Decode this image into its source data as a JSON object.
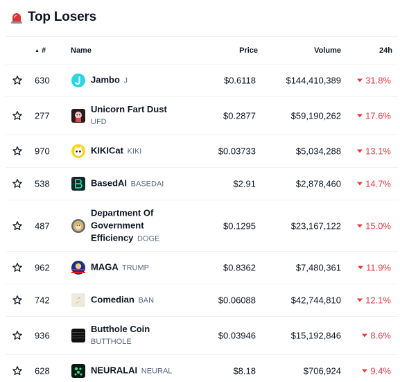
{
  "header": {
    "icon": "siren-icon",
    "title": "Top Losers"
  },
  "table": {
    "columns": {
      "rank": "#",
      "name": "Name",
      "price": "Price",
      "volume": "Volume",
      "change": "24h"
    },
    "sort_indicator": "▲",
    "rows": [
      {
        "rank": "630",
        "name": "Jambo",
        "symbol": "J",
        "price": "$0.6118",
        "volume": "$144,410,389",
        "change": "31.8%",
        "icon": "jambo-icon",
        "multiline": false
      },
      {
        "rank": "277",
        "name": "Unicorn Fart Dust",
        "symbol": "UFD",
        "price": "$0.2877",
        "volume": "$59,190,262",
        "change": "17.6%",
        "icon": "unicorn-fart-dust-icon",
        "multiline": true
      },
      {
        "rank": "970",
        "name": "KIKICat",
        "symbol": "KIKI",
        "price": "$0.03733",
        "volume": "$5,034,288",
        "change": "13.1%",
        "icon": "kikicat-icon",
        "multiline": false
      },
      {
        "rank": "538",
        "name": "BasedAI",
        "symbol": "BASEDAI",
        "price": "$2.91",
        "volume": "$2,878,460",
        "change": "14.7%",
        "icon": "basedai-icon",
        "multiline": false
      },
      {
        "rank": "487",
        "name_lines": [
          "Department Of",
          "Government",
          "Efficiency"
        ],
        "symbol": "DOGE",
        "price": "$0.1295",
        "volume": "$23,167,122",
        "change": "15.0%",
        "icon": "doge-icon",
        "multiline": true
      },
      {
        "rank": "962",
        "name": "MAGA",
        "symbol": "TRUMP",
        "price": "$0.8362",
        "volume": "$7,480,361",
        "change": "11.9%",
        "icon": "maga-icon",
        "multiline": false
      },
      {
        "rank": "742",
        "name": "Comedian",
        "symbol": "BAN",
        "price": "$0.06088",
        "volume": "$42,744,810",
        "change": "12.1%",
        "icon": "comedian-banana-icon",
        "multiline": false
      },
      {
        "rank": "936",
        "name": "Butthole Coin",
        "symbol": "BUTTHOLE",
        "price": "$0.03946",
        "volume": "$15,192,846",
        "change": "8.6%",
        "icon": "butthole-coin-icon",
        "multiline": true
      },
      {
        "rank": "628",
        "name": "NEURALAI",
        "symbol": "NEURAL",
        "price": "$8.18",
        "volume": "$706,924",
        "change": "9.4%",
        "icon": "neuralai-icon",
        "multiline": false
      }
    ]
  },
  "colors": {
    "negative": "#ea3943",
    "text": "#0d1421",
    "muted": "#58667e",
    "divider": "#eff2f5"
  }
}
